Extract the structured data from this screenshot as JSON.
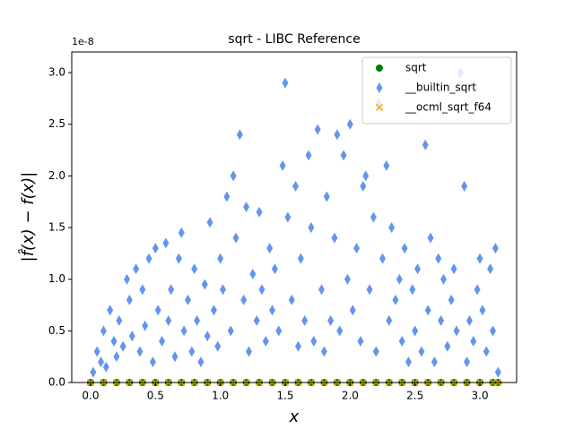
{
  "chart_data": {
    "type": "scatter",
    "title": "sqrt - LIBC Reference",
    "x_label": "x",
    "y_label": "|f̂(x) − f(x)|",
    "y_offset_label": "1e-8",
    "xlim": [
      -0.145,
      3.283
    ],
    "ylim": [
      0,
      3.2
    ],
    "xticks": [
      {
        "value": 0,
        "label": "0.0"
      },
      0.5,
      {
        "value": 1,
        "label": "1.0"
      },
      1.5,
      {
        "value": 2,
        "label": "2.0"
      },
      2.5,
      {
        "value": 3,
        "label": "3.0"
      }
    ],
    "yticks": [
      {
        "value": 0,
        "label": "0.0"
      },
      0.5,
      {
        "value": 1,
        "label": "1.0"
      },
      1.5,
      {
        "value": 2,
        "label": "2.0"
      },
      2.5,
      {
        "value": 3,
        "label": "3.0"
      }
    ],
    "legend": "upper right",
    "series": [
      {
        "name": "sqrt",
        "color": "#008000",
        "marker": "circle",
        "x": [
          0,
          0.1,
          0.2,
          0.3,
          0.4,
          0.5,
          0.6,
          0.7,
          0.8,
          0.9,
          1.0,
          1.1,
          1.2,
          1.3,
          1.4,
          1.5,
          1.6,
          1.7,
          1.8,
          1.9,
          2.0,
          2.1,
          2.2,
          2.3,
          2.4,
          2.5,
          2.6,
          2.7,
          2.8,
          2.9,
          3.0,
          3.1,
          3.14
        ],
        "values": [
          0,
          0,
          0,
          0,
          0,
          0,
          0,
          0,
          0,
          0,
          0,
          0,
          0,
          0,
          0,
          0,
          0,
          0,
          0,
          0,
          0,
          0,
          0,
          0,
          0,
          0,
          0,
          0,
          0,
          0,
          0,
          0,
          0
        ]
      },
      {
        "name": "__builtin_sqrt",
        "color": "#6495ed",
        "marker": "diamond",
        "x": [
          0.02,
          0.05,
          0.08,
          0.1,
          0.12,
          0.15,
          0.18,
          0.2,
          0.22,
          0.25,
          0.28,
          0.3,
          0.32,
          0.35,
          0.38,
          0.4,
          0.42,
          0.45,
          0.48,
          0.5,
          0.52,
          0.55,
          0.58,
          0.6,
          0.62,
          0.65,
          0.68,
          0.7,
          0.72,
          0.75,
          0.78,
          0.8,
          0.82,
          0.85,
          0.88,
          0.9,
          0.92,
          0.95,
          0.98,
          1.0,
          1.02,
          1.05,
          1.08,
          1.1,
          1.12,
          1.15,
          1.18,
          1.2,
          1.22,
          1.25,
          1.28,
          1.3,
          1.32,
          1.35,
          1.38,
          1.4,
          1.42,
          1.45,
          1.48,
          1.5,
          1.52,
          1.55,
          1.58,
          1.6,
          1.62,
          1.65,
          1.68,
          1.7,
          1.72,
          1.75,
          1.78,
          1.8,
          1.82,
          1.85,
          1.88,
          1.9,
          1.92,
          1.95,
          1.98,
          2.0,
          2.02,
          2.05,
          2.08,
          2.1,
          2.12,
          2.15,
          2.18,
          2.2,
          2.22,
          2.25,
          2.28,
          2.3,
          2.32,
          2.35,
          2.38,
          2.4,
          2.42,
          2.45,
          2.48,
          2.5,
          2.52,
          2.55,
          2.58,
          2.6,
          2.62,
          2.65,
          2.68,
          2.7,
          2.72,
          2.75,
          2.78,
          2.8,
          2.82,
          2.85,
          2.88,
          2.9,
          2.92,
          2.95,
          2.98,
          3.0,
          3.02,
          3.05,
          3.08,
          3.1,
          3.12,
          3.14
        ],
        "values": [
          0.1,
          0.3,
          0.2,
          0.5,
          0.15,
          0.7,
          0.4,
          0.25,
          0.6,
          0.35,
          1.0,
          0.8,
          0.45,
          1.1,
          0.3,
          0.9,
          0.55,
          1.2,
          0.2,
          1.3,
          0.7,
          0.4,
          1.35,
          0.6,
          0.9,
          0.25,
          1.2,
          1.45,
          0.5,
          0.8,
          0.3,
          1.1,
          0.6,
          0.2,
          0.95,
          0.45,
          1.55,
          0.7,
          0.35,
          1.2,
          0.9,
          1.8,
          0.5,
          2.0,
          1.4,
          2.4,
          0.8,
          1.7,
          0.3,
          1.05,
          0.6,
          1.65,
          0.9,
          0.4,
          1.3,
          0.7,
          1.1,
          0.5,
          2.1,
          2.9,
          1.6,
          0.8,
          1.9,
          0.35,
          1.2,
          0.6,
          2.2,
          1.5,
          0.4,
          2.45,
          0.9,
          0.3,
          1.8,
          0.6,
          1.4,
          2.4,
          0.5,
          2.2,
          1.0,
          2.5,
          0.7,
          1.3,
          0.4,
          1.9,
          2.0,
          0.9,
          1.6,
          0.3,
          2.7,
          1.2,
          2.1,
          0.6,
          1.5,
          0.8,
          1.0,
          0.4,
          1.3,
          0.2,
          0.9,
          0.5,
          1.1,
          0.3,
          2.3,
          0.7,
          1.4,
          0.2,
          1.2,
          0.6,
          1.0,
          0.35,
          0.8,
          1.1,
          0.5,
          3.0,
          1.9,
          0.2,
          0.6,
          0.4,
          0.9,
          1.2,
          0.7,
          0.3,
          1.1,
          0.5,
          1.3,
          0.1
        ]
      },
      {
        "name": "__ocml_sqrt_f64",
        "color": "#ffa500",
        "marker": "x",
        "x": [
          0,
          0.1,
          0.2,
          0.3,
          0.4,
          0.5,
          0.6,
          0.7,
          0.8,
          0.9,
          1.0,
          1.1,
          1.2,
          1.3,
          1.4,
          1.5,
          1.6,
          1.7,
          1.8,
          1.9,
          2.0,
          2.1,
          2.2,
          2.3,
          2.4,
          2.5,
          2.6,
          2.7,
          2.8,
          2.9,
          3.0,
          3.1,
          3.14
        ],
        "values": [
          0,
          0,
          0,
          0,
          0,
          0,
          0,
          0,
          0,
          0,
          0,
          0,
          0,
          0,
          0,
          0,
          0,
          0,
          0,
          0,
          0,
          0,
          0,
          0,
          0,
          0,
          0,
          0,
          0,
          0,
          0,
          0,
          0
        ]
      }
    ]
  }
}
